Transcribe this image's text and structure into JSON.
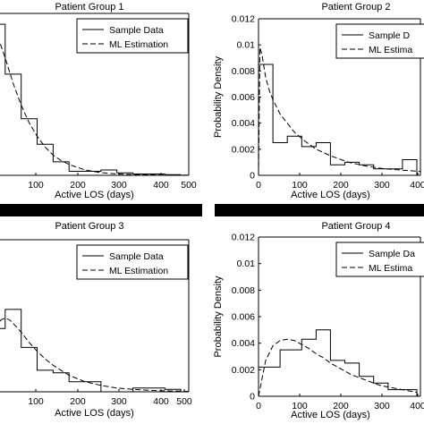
{
  "chart_data": [
    {
      "type": "line",
      "title": "Patient Group 1",
      "xlabel": "Active LOS (days)",
      "ylabel": "",
      "xlim": [
        0,
        500
      ],
      "ylim": [
        0,
        0.012
      ],
      "xticks": [
        "100",
        "200",
        "300",
        "400",
        "500"
      ],
      "yticks": [],
      "legend": {
        "position": "top-right",
        "entries": [
          "Sample Data",
          "ML Estimation"
        ]
      },
      "series": [
        {
          "name": "Sample Data",
          "style": "solid-step",
          "bin_edges": [
            0,
            40,
            80,
            120,
            160,
            200,
            240,
            280,
            320,
            360,
            400,
            440,
            480,
            500
          ],
          "values": [
            0.0112,
            0.0075,
            0.0042,
            0.0023,
            0.001,
            0.0003,
            0.0003,
            0.0004,
            0.00018,
            0.0001,
            0.0001,
            5e-05,
            0.0
          ]
        },
        {
          "name": "ML Estimation",
          "style": "dashed",
          "x": [
            0,
            20,
            40,
            60,
            80,
            100,
            120,
            140,
            160,
            180,
            200,
            240,
            280,
            320,
            360,
            400,
            440,
            500
          ],
          "y": [
            0.0113,
            0.0104,
            0.0087,
            0.0068,
            0.0052,
            0.0039,
            0.0029,
            0.0021,
            0.0015,
            0.0011,
            0.0008,
            0.0004,
            0.0002,
            0.0001,
            6e-05,
            3e-05,
            2e-05,
            1e-05
          ]
        }
      ]
    },
    {
      "type": "line",
      "title": "Patient Group 2",
      "xlabel": "Active LOS (days)",
      "ylabel": "Probability Density",
      "xlim": [
        0,
        450
      ],
      "ylim": [
        0,
        0.012
      ],
      "xticks": [
        "0",
        "100",
        "200",
        "300",
        "400"
      ],
      "yticks": [
        "0",
        "0.002",
        "0.004",
        "0.006",
        "0.008",
        "0.01",
        "0.012"
      ],
      "legend": {
        "position": "top-right",
        "entries": [
          "Sample D",
          "ML Estima"
        ]
      },
      "series": [
        {
          "name": "Sample D",
          "style": "solid-step",
          "bin_edges": [
            0,
            8,
            40,
            80,
            120,
            160,
            200,
            240,
            280,
            320,
            360,
            400,
            440
          ],
          "values": [
            0.0085,
            0.0085,
            0.0025,
            0.003,
            0.0022,
            0.0025,
            0.0008,
            0.001,
            0.0008,
            0.0005,
            0.0005,
            0.0012
          ]
        },
        {
          "name": "ML Estima",
          "style": "dashed",
          "x": [
            0,
            4,
            10,
            20,
            30,
            40,
            60,
            80,
            100,
            130,
            160,
            200,
            250,
            300,
            350,
            400,
            450
          ],
          "y": [
            0.0,
            0.0098,
            0.0092,
            0.0075,
            0.0065,
            0.0058,
            0.0047,
            0.004,
            0.0033,
            0.0026,
            0.002,
            0.0015,
            0.001,
            0.0007,
            0.0005,
            0.0004,
            0.0003
          ]
        }
      ]
    },
    {
      "type": "line",
      "title": "Patient Group 3",
      "xlabel": "Active LOS (days)",
      "ylabel": "",
      "xlim": [
        0,
        500
      ],
      "ylim": [
        0,
        0.012
      ],
      "xticks": [
        "100",
        "200",
        "300",
        "400",
        "500"
      ],
      "yticks": [],
      "legend": {
        "position": "top-right",
        "entries": [
          "Sample Data",
          "ML Estimation"
        ]
      },
      "series": [
        {
          "name": "Sample Data",
          "style": "solid-step",
          "bin_edges": [
            0,
            40,
            80,
            120,
            160,
            200,
            240,
            280,
            320,
            360,
            400,
            440,
            480,
            500
          ],
          "values": [
            0.005,
            0.0065,
            0.0035,
            0.0017,
            0.0015,
            0.0008,
            0.0008,
            0.0,
            0.0,
            0.0003,
            0.0003,
            0.0002,
            0.0
          ]
        },
        {
          "name": "ML Estimation",
          "style": "dashed",
          "x": [
            0,
            10,
            20,
            30,
            40,
            50,
            60,
            80,
            100,
            120,
            140,
            160,
            200,
            240,
            280,
            320,
            360,
            400,
            440,
            480,
            500
          ],
          "y": [
            0.0032,
            0.0045,
            0.0053,
            0.0057,
            0.0058,
            0.0057,
            0.0054,
            0.0047,
            0.0039,
            0.0032,
            0.0026,
            0.0021,
            0.0013,
            0.0008,
            0.0005,
            0.0003,
            0.0002,
            0.00012,
            8e-05,
            5e-05,
            3e-05
          ]
        }
      ]
    },
    {
      "type": "line",
      "title": "Patient Group 4",
      "xlabel": "Active LOS (days)",
      "ylabel": "Probability Density",
      "xlim": [
        0,
        450
      ],
      "ylim": [
        0,
        0.012
      ],
      "xticks": [
        "0",
        "100",
        "200",
        "300",
        "400"
      ],
      "yticks": [
        "0",
        "0.002",
        "0.004",
        "0.006",
        "0.008",
        "0.01",
        "0.012"
      ],
      "legend": {
        "position": "top-right",
        "entries": [
          "Sample Da",
          "ML Estima"
        ]
      },
      "series": [
        {
          "name": "Sample Da",
          "style": "solid-step",
          "bin_edges": [
            0,
            60,
            120,
            160,
            200,
            240,
            280,
            320,
            360,
            400,
            440
          ],
          "values": [
            0.0022,
            0.0035,
            0.0043,
            0.005,
            0.0027,
            0.0025,
            0.0015,
            0.001,
            0.0005,
            0.0005
          ]
        },
        {
          "name": "ML Estima",
          "style": "dashed",
          "x": [
            0,
            20,
            40,
            60,
            80,
            100,
            120,
            140,
            160,
            180,
            200,
            220,
            240,
            260,
            280,
            300,
            320,
            340,
            360,
            380,
            400,
            420,
            440
          ],
          "y": [
            0.0,
            0.0027,
            0.0038,
            0.0042,
            0.0043,
            0.0042,
            0.0039,
            0.0036,
            0.0032,
            0.0029,
            0.0025,
            0.0022,
            0.0019,
            0.0016,
            0.0014,
            0.0012,
            0.001,
            0.0008,
            0.0007,
            0.0006,
            0.0005,
            0.0004,
            0.0003
          ]
        }
      ]
    }
  ]
}
